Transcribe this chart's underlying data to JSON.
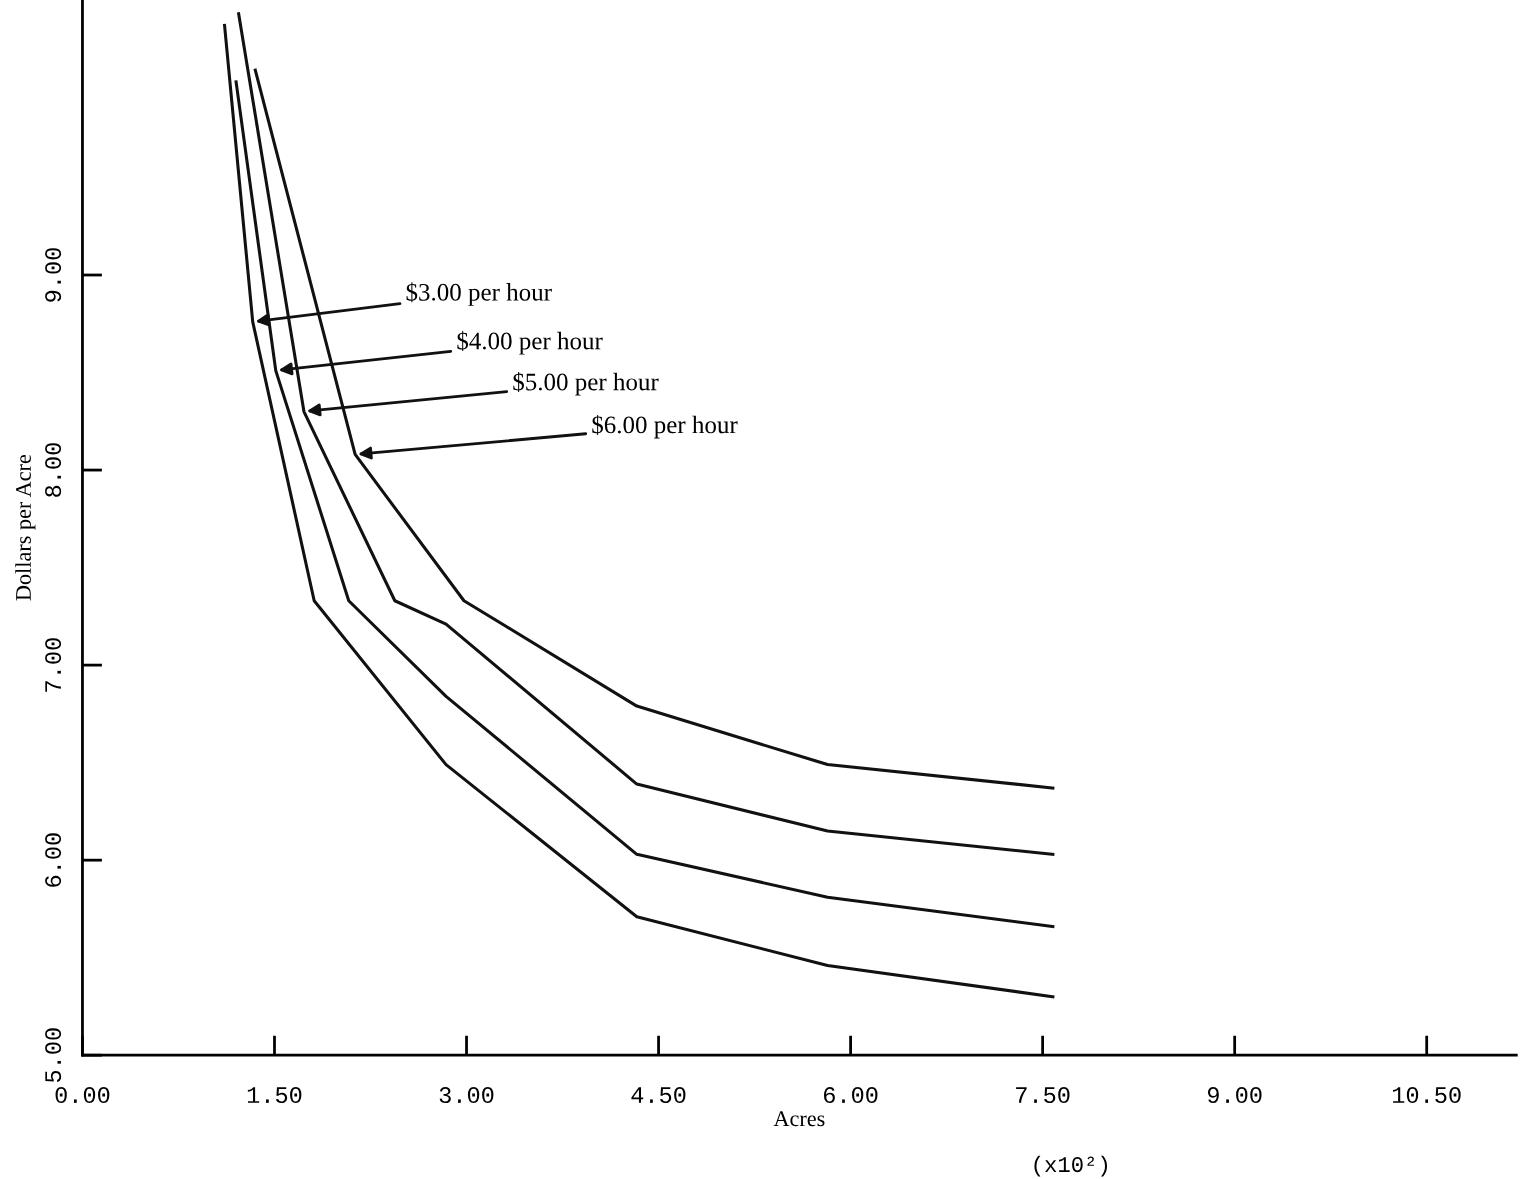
{
  "chart_data": {
    "type": "line",
    "xlabel": "Acres",
    "ylabel": "Dollars per Acre",
    "series": [
      {
        "color": "#111111",
        "x": [
          1.11,
          1.33,
          1.81,
          2.84,
          4.33,
          5.82,
          7.58
        ],
        "values": [
          10.28,
          8.76,
          7.33,
          6.49,
          5.71,
          5.46,
          5.3
        ]
      },
      {
        "color": "#111111",
        "x": [
          1.2,
          1.51,
          2.08,
          2.84,
          4.33,
          5.82,
          7.58
        ],
        "values": [
          9.99,
          8.51,
          7.33,
          6.84,
          6.03,
          5.81,
          5.66
        ]
      },
      {
        "color": "#111111",
        "x": [
          1.22,
          1.73,
          2.44,
          2.84,
          4.33,
          5.82,
          7.58
        ],
        "values": [
          10.34,
          8.3,
          7.33,
          7.21,
          6.39,
          6.15,
          6.03
        ]
      },
      {
        "color": "#111111",
        "x": [
          1.35,
          2.13,
          2.98,
          4.33,
          5.82,
          7.58
        ],
        "values": [
          10.05,
          8.08,
          7.33,
          6.79,
          6.49,
          6.37
        ]
      }
    ],
    "annotations": [
      {
        "text": "$3.00 per hour",
        "x": 1.33,
        "y": 8.76
      },
      {
        "text": "$4.00 per hour",
        "x": 1.51,
        "y": 8.51
      },
      {
        "text": "$5.00 per hour",
        "x": 1.73,
        "y": 8.3
      },
      {
        "text": "$6.00 per hour",
        "x": 2.13,
        "y": 8.08
      },
      "(x10²)"
    ],
    "xlim": [
      0,
      11.2
    ],
    "ylim": [
      5,
      10.41
    ],
    "xticks": [
      {
        "value": 0,
        "label": "0.00"
      },
      {
        "value": 1.5,
        "label": "1.50"
      },
      {
        "value": 3,
        "label": "3.00"
      },
      {
        "value": 4.5,
        "label": "4.50"
      },
      {
        "value": 6,
        "label": "6.00"
      },
      {
        "value": 7.5,
        "label": "7.50"
      },
      {
        "value": 9,
        "label": "9.00"
      },
      {
        "value": 10.5,
        "label": "10.50"
      }
    ],
    "yticks": [
      {
        "value": 5,
        "label": "5.00"
      },
      {
        "value": 6,
        "label": "6.00"
      },
      {
        "value": 7,
        "label": "7.00"
      },
      {
        "value": 8,
        "label": "8.00"
      },
      {
        "value": 9,
        "label": "9.00"
      }
    ],
    "grid": false,
    "legend": false,
    "marker": "none",
    "line_style": "solid"
  }
}
